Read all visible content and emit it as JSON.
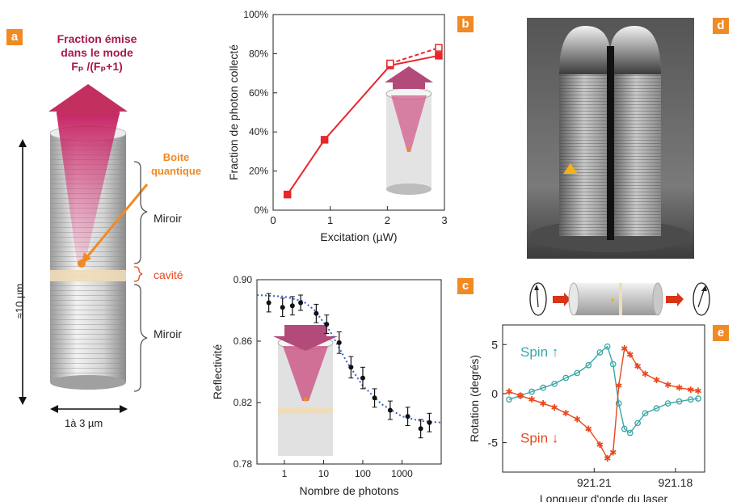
{
  "panel_a": {
    "tag": "a",
    "title_line1": "Fraction émise",
    "title_line2": "dans le mode",
    "title_line3": "Fₚ /(Fₚ+1)",
    "qd_line1": "Boite",
    "qd_line2": "quantique",
    "mirror_top": "Miroir",
    "cavity": "cavité",
    "mirror_bottom": "Miroir",
    "height": "≈10 µm",
    "width": "1à 3 µm"
  },
  "panel_b": {
    "tag": "b"
  },
  "panel_c": {
    "tag": "c"
  },
  "panel_d": {
    "tag": "d"
  },
  "panel_e": {
    "tag": "e"
  },
  "chart_data": [
    {
      "type": "line",
      "panel": "b",
      "xlabel": "Excitation (µW)",
      "ylabel": "Fraction de photon collecté",
      "xlim": [
        0,
        3
      ],
      "ylim": [
        0,
        100
      ],
      "xticks": [
        "0",
        "1",
        "2",
        "3"
      ],
      "yticks": [
        "0%",
        "20%",
        "40%",
        "60%",
        "80%",
        "100%"
      ],
      "series": [
        {
          "marker": "filled-square",
          "style": "solid",
          "color": "#e8262b",
          "x": [
            0.25,
            0.9,
            2.05,
            2.9
          ],
          "y": [
            8,
            36,
            74,
            79
          ]
        },
        {
          "marker": "open-square",
          "style": "dashed",
          "color": "#e8262b",
          "x": [
            2.05,
            2.9
          ],
          "y": [
            75,
            83
          ]
        }
      ]
    },
    {
      "type": "scatter",
      "panel": "c",
      "xlabel": "Nombre de photons",
      "ylabel": "Reflectivité",
      "xscale": "log",
      "xlim": [
        0.2,
        10000
      ],
      "ylim": [
        0.78,
        0.9
      ],
      "xticks": [
        "1",
        "10",
        "100",
        "1000"
      ],
      "yticks": [
        "0.78",
        "0.82",
        "0.86",
        "0.90"
      ],
      "series": [
        {
          "marker": "filled-circle",
          "color": "#111111",
          "errorbars": true,
          "x": [
            0.4,
            0.9,
            1.6,
            2.6,
            6.5,
            12,
            25,
            50,
            100,
            200,
            500,
            1400,
            3000,
            5000
          ],
          "y": [
            0.885,
            0.882,
            0.883,
            0.885,
            0.878,
            0.871,
            0.859,
            0.843,
            0.836,
            0.823,
            0.815,
            0.811,
            0.803,
            0.807
          ],
          "err": [
            0.006,
            0.006,
            0.006,
            0.005,
            0.006,
            0.006,
            0.007,
            0.007,
            0.007,
            0.006,
            0.006,
            0.006,
            0.006,
            0.006
          ]
        },
        {
          "type": "fit",
          "style": "dotted",
          "color": "#3b5fc9",
          "x": [
            0.2,
            1,
            3,
            6,
            15,
            40,
            100,
            300,
            1000,
            3000,
            10000
          ],
          "y": [
            0.89,
            0.889,
            0.886,
            0.88,
            0.866,
            0.846,
            0.831,
            0.819,
            0.811,
            0.808,
            0.807
          ]
        }
      ]
    },
    {
      "type": "scatter",
      "panel": "e",
      "xlabel": "Longueur d'onde du laser",
      "ylabel": "Rotation (degrés)",
      "xticks": [
        "921.21",
        "921.18"
      ],
      "yticks": [
        "5",
        "0",
        "-5"
      ],
      "ylim": [
        -8,
        7
      ],
      "series": [
        {
          "name": "Spin ↑",
          "color": "#3aa6a6",
          "marker": "open-circle",
          "x": [
            0.0,
            0.06,
            0.12,
            0.18,
            0.24,
            0.3,
            0.36,
            0.42,
            0.48,
            0.52,
            0.55,
            0.58,
            0.61,
            0.64,
            0.68,
            0.72,
            0.78,
            0.84,
            0.9,
            0.96,
            1.0
          ],
          "y": [
            -0.6,
            -0.2,
            0.2,
            0.6,
            1.0,
            1.6,
            2.1,
            2.9,
            4.2,
            4.8,
            3.0,
            -1.0,
            -3.6,
            -4.0,
            -3.0,
            -2.0,
            -1.5,
            -1.0,
            -0.8,
            -0.6,
            -0.5
          ]
        },
        {
          "name": "Spin ↓",
          "color": "#e8481e",
          "marker": "star",
          "x": [
            0.0,
            0.06,
            0.12,
            0.18,
            0.24,
            0.3,
            0.36,
            0.42,
            0.48,
            0.52,
            0.55,
            0.58,
            0.61,
            0.64,
            0.68,
            0.72,
            0.78,
            0.84,
            0.9,
            0.96,
            1.0
          ],
          "y": [
            0.2,
            -0.2,
            -0.6,
            -1.0,
            -1.4,
            -2.0,
            -2.6,
            -3.6,
            -5.2,
            -6.6,
            -6.0,
            0.8,
            4.6,
            4.0,
            2.8,
            2.0,
            1.4,
            0.9,
            0.6,
            0.4,
            0.3
          ]
        }
      ]
    }
  ]
}
